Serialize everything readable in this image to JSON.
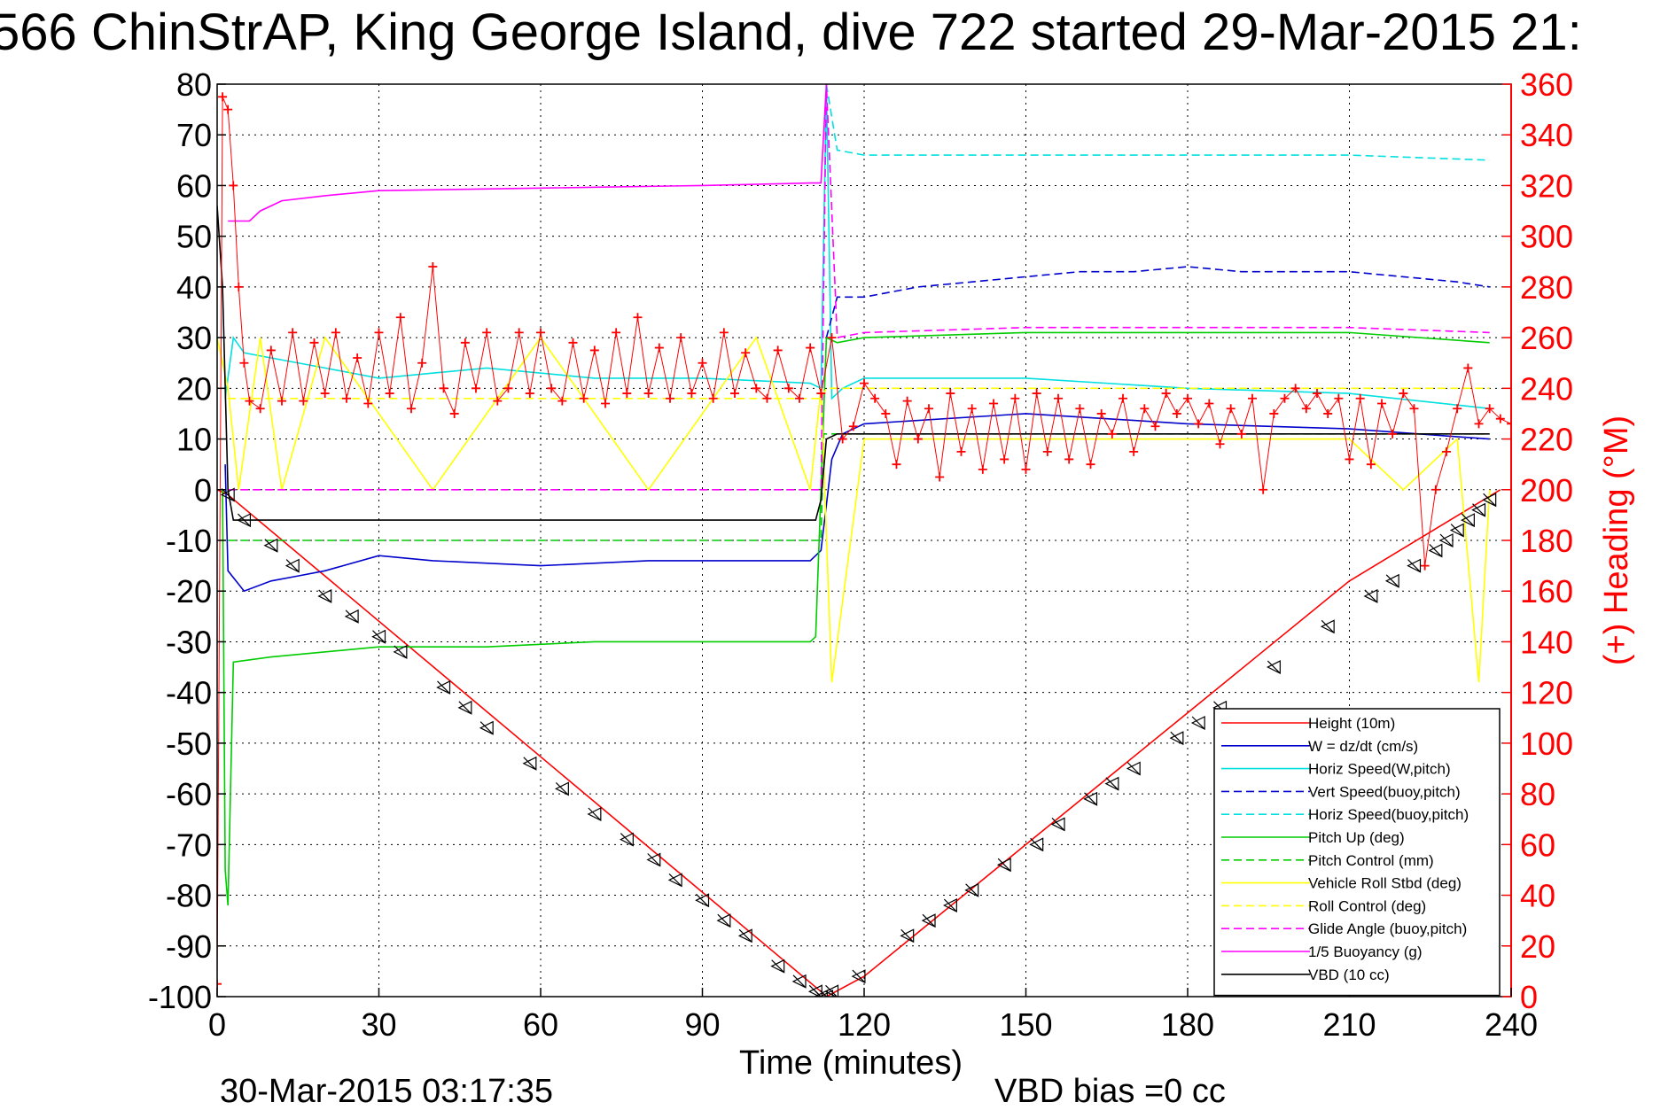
{
  "chart_data": {
    "type": "line",
    "title": "566 ChinStrAP, King George Island, dive 722 started 29-Mar-2015 21:",
    "xlabel": "Time (minutes)",
    "ylabel_right": "(+) Heading (°M)",
    "xlim": [
      0,
      240
    ],
    "ylim": [
      -100,
      80
    ],
    "ylim_right": [
      0,
      360
    ],
    "xticks": [
      0,
      30,
      60,
      90,
      120,
      150,
      180,
      210,
      240
    ],
    "yticks": [
      -100,
      -90,
      -80,
      -70,
      -60,
      -50,
      -40,
      -30,
      -20,
      -10,
      0,
      10,
      20,
      30,
      40,
      50,
      60,
      70,
      80
    ],
    "yticks_right": [
      0,
      20,
      40,
      60,
      80,
      100,
      120,
      140,
      160,
      180,
      200,
      220,
      240,
      260,
      280,
      300,
      320,
      340,
      360
    ],
    "grid": true,
    "legend_position": "bottom-right",
    "footer_left": "30-Mar-2015 03:17:35",
    "footer_right": "VBD bias =0 cc",
    "series": [
      {
        "name": "Height (10m)",
        "color": "#ff0000",
        "style": "solid",
        "x": [
          0,
          2,
          112,
          113,
          120,
          150,
          180,
          210,
          238
        ],
        "y": [
          0,
          -1,
          -99,
          -100,
          -96,
          -70,
          -44,
          -18,
          0
        ]
      },
      {
        "name": "W = dz/dt (cm/s)",
        "color": "#0000cc",
        "style": "solid",
        "x": [
          1.5,
          2,
          5,
          10,
          15,
          20,
          30,
          40,
          60,
          80,
          100,
          110,
          112,
          114,
          116,
          120,
          150,
          180,
          210,
          236
        ],
        "y": [
          5,
          -16,
          -20,
          -18,
          -17,
          -16,
          -13,
          -14,
          -15,
          -14,
          -14,
          -14,
          -12,
          6,
          11,
          13,
          15,
          13,
          12,
          10
        ]
      },
      {
        "name": "Horiz Speed(W,pitch)",
        "color": "#00e0e0",
        "style": "solid",
        "x": [
          1.5,
          3,
          5,
          10,
          20,
          30,
          50,
          70,
          90,
          110,
          112,
          113,
          114,
          116,
          120,
          150,
          180,
          210,
          236
        ],
        "y": [
          18,
          30,
          27,
          26,
          24,
          22,
          24,
          22,
          22,
          21,
          20,
          80,
          18,
          20,
          22,
          22,
          20,
          19,
          16
        ]
      },
      {
        "name": "Vert Speed(buoy,pitch)",
        "color": "#0000cc",
        "style": "dashed",
        "x": [
          113,
          115,
          120,
          130,
          140,
          150,
          160,
          170,
          180,
          190,
          200,
          210,
          220,
          230,
          236
        ],
        "y": [
          30,
          38,
          38,
          40,
          41,
          42,
          43,
          43,
          44,
          43,
          43,
          43,
          42,
          41,
          40
        ]
      },
      {
        "name": "Horiz Speed(buoy,pitch)",
        "color": "#00e0e0",
        "style": "dashed",
        "x": [
          113,
          115,
          120,
          150,
          180,
          210,
          236
        ],
        "y": [
          80,
          67,
          66,
          66,
          66,
          66,
          65
        ]
      },
      {
        "name": "Pitch Up (deg)",
        "color": "#00cc00",
        "style": "solid",
        "x": [
          1,
          1.5,
          2,
          3,
          10,
          30,
          50,
          70,
          90,
          110,
          111,
          112,
          113,
          115,
          120,
          150,
          180,
          210,
          236
        ],
        "y": [
          0,
          -75,
          -82,
          -34,
          -33,
          -31,
          -31,
          -30,
          -30,
          -30,
          -29,
          0,
          30,
          29,
          30,
          31,
          31,
          31,
          29
        ]
      },
      {
        "name": "Pitch Control (mm)",
        "color": "#00cc00",
        "style": "dashed",
        "x": [
          2,
          112,
          112.5,
          236
        ],
        "y": [
          -10,
          -10,
          11,
          11
        ]
      },
      {
        "name": "Vehicle Roll Stbd (deg)",
        "color": "#ffff00",
        "style": "solid",
        "x": [
          0,
          2,
          4,
          8,
          12,
          20,
          40,
          60,
          80,
          100,
          110,
          112,
          114,
          120,
          150,
          180,
          200,
          210,
          220,
          230,
          234,
          236
        ],
        "y": [
          30,
          20,
          0,
          30,
          0,
          30,
          0,
          30,
          0,
          30,
          0,
          20,
          -38,
          10,
          10,
          10,
          10,
          10,
          0,
          10,
          -38,
          0
        ]
      },
      {
        "name": "Roll Control (deg)",
        "color": "#ffff00",
        "style": "dashed",
        "x": [
          2,
          112,
          113,
          236
        ],
        "y": [
          18,
          18,
          20,
          20
        ]
      },
      {
        "name": "Glide Angle (buoy,pitch)",
        "color": "#ff00ff",
        "style": "dashed",
        "x": [
          2,
          112,
          113,
          115,
          120,
          150,
          180,
          210,
          236
        ],
        "y": [
          0,
          0,
          80,
          30,
          31,
          32,
          32,
          32,
          31
        ]
      },
      {
        "name": "1/5 Buoyancy (g)",
        "color": "#ff00ff",
        "style": "solid",
        "x": [
          2,
          6,
          8,
          12,
          20,
          30,
          60,
          90,
          110,
          112,
          113
        ],
        "y": [
          53,
          53,
          55,
          57,
          58,
          59,
          59.5,
          60,
          60.5,
          60.5,
          80
        ]
      },
      {
        "name": "VBD (10 cc)",
        "color": "#000000",
        "style": "solid",
        "x": [
          0,
          1,
          2,
          3,
          110,
          111,
          112,
          113,
          115,
          236
        ],
        "y": [
          56,
          40,
          0,
          -6,
          -6,
          -6,
          -2,
          10,
          11,
          11
        ]
      }
    ],
    "heading": {
      "name": "(+) Heading (°M)",
      "color": "#ff0000",
      "marker": "+",
      "x": [
        0,
        1,
        2,
        3,
        4,
        5,
        6,
        8,
        10,
        12,
        14,
        16,
        18,
        20,
        22,
        24,
        26,
        28,
        30,
        32,
        34,
        36,
        38,
        40,
        42,
        44,
        46,
        48,
        50,
        52,
        54,
        56,
        58,
        60,
        62,
        64,
        66,
        68,
        70,
        72,
        74,
        76,
        78,
        80,
        82,
        84,
        86,
        88,
        90,
        92,
        94,
        96,
        98,
        100,
        102,
        104,
        106,
        108,
        110,
        112,
        114,
        116,
        118,
        120,
        122,
        124,
        126,
        128,
        130,
        132,
        134,
        136,
        138,
        140,
        142,
        144,
        146,
        148,
        150,
        152,
        154,
        156,
        158,
        160,
        162,
        164,
        166,
        168,
        170,
        172,
        174,
        176,
        178,
        180,
        182,
        184,
        186,
        188,
        190,
        192,
        194,
        196,
        198,
        200,
        202,
        204,
        206,
        208,
        210,
        212,
        214,
        216,
        218,
        220,
        222,
        224,
        226,
        228,
        230,
        232,
        234,
        236,
        238,
        240
      ],
      "y": [
        5,
        355,
        350,
        320,
        280,
        250,
        235,
        232,
        255,
        235,
        262,
        235,
        258,
        238,
        262,
        236,
        252,
        234,
        262,
        238,
        268,
        232,
        250,
        288,
        240,
        230,
        258,
        240,
        262,
        235,
        240,
        262,
        238,
        262,
        240,
        235,
        258,
        236,
        255,
        234,
        262,
        238,
        268,
        238,
        256,
        236,
        260,
        238,
        250,
        236,
        262,
        238,
        254,
        240,
        236,
        255,
        240,
        236,
        256,
        238,
        260,
        220,
        225,
        242,
        236,
        230,
        210,
        235,
        220,
        232,
        205,
        238,
        215,
        232,
        208,
        234,
        212,
        236,
        208,
        238,
        215,
        236,
        212,
        232,
        210,
        230,
        222,
        236,
        215,
        232,
        225,
        238,
        230,
        236,
        226,
        234,
        218,
        232,
        222,
        236,
        200,
        230,
        236,
        240,
        232,
        238,
        230,
        236,
        212,
        236,
        210,
        234,
        222,
        238,
        232,
        170,
        200,
        215,
        232,
        248,
        226,
        232,
        228,
        226
      ]
    },
    "markers_triangle": {
      "x": [
        2,
        5,
        10,
        14,
        20,
        25,
        30,
        34,
        42,
        46,
        50,
        58,
        64,
        70,
        76,
        81,
        85,
        90,
        94,
        98,
        104,
        108,
        111,
        112,
        113,
        114,
        119,
        128,
        132,
        136,
        140,
        146,
        152,
        156,
        162,
        166,
        170,
        178,
        182,
        186,
        196,
        206,
        214,
        218,
        222,
        226,
        228,
        230,
        232,
        234,
        236
      ],
      "y": [
        -1,
        -6,
        -11,
        -15,
        -21,
        -25,
        -29,
        -32,
        -39,
        -43,
        -47,
        -54,
        -59,
        -64,
        -69,
        -73,
        -77,
        -81,
        -85,
        -88,
        -94,
        -97,
        -99,
        -100,
        -100,
        -99,
        -96,
        -88,
        -85,
        -82,
        -79,
        -74,
        -70,
        -66,
        -61,
        -58,
        -55,
        -49,
        -46,
        -43,
        -35,
        -27,
        -21,
        -18,
        -15,
        -12,
        -10,
        -8,
        -6,
        -4,
        -2
      ]
    }
  }
}
